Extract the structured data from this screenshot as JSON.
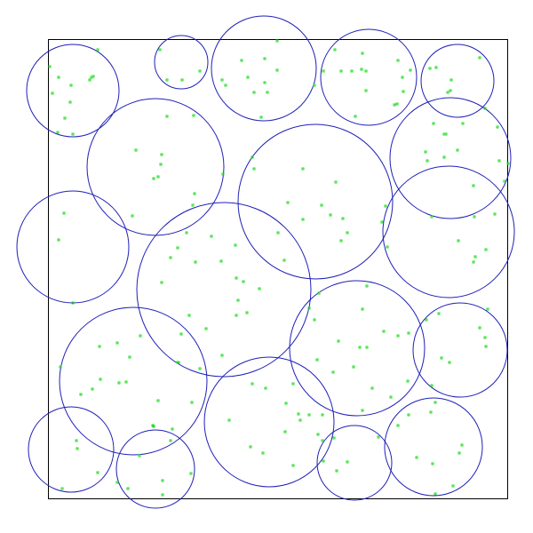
{
  "colors": {
    "background": "#ffffff",
    "frame": "#000000",
    "circle_stroke": "#1f1fb8",
    "point_stroke": "#22dd22"
  }
}
